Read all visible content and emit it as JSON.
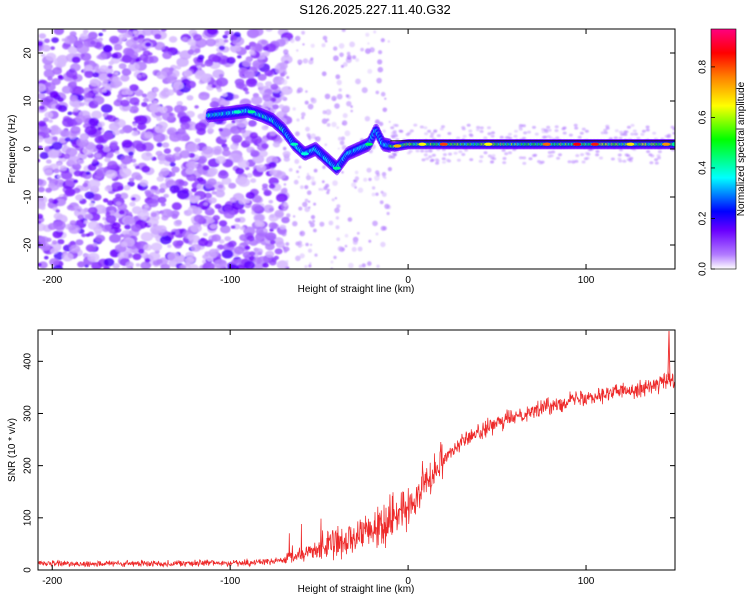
{
  "title": "S126.2025.227.11.40.G32",
  "chart_data": [
    {
      "type": "heatmap",
      "xlabel": "Height of straight line (km)",
      "ylabel": "Frequency (Hz)",
      "xlim": [
        -208,
        150
      ],
      "ylim": [
        -25,
        25
      ],
      "xticks": [
        -200,
        -100,
        0,
        100
      ],
      "yticks": [
        -20,
        -10,
        0,
        10,
        20
      ],
      "colorbar": {
        "label": "Normalized spectral amplitude",
        "range": [
          0.0,
          0.95
        ],
        "ticks": [
          0.0,
          0.2,
          0.4,
          0.6,
          0.8
        ],
        "colors": [
          "#ffffff",
          "#b27bff",
          "#6a00ff",
          "#0000ff",
          "#00ffff",
          "#00ff00",
          "#ffff00",
          "#ff8000",
          "#ff0000",
          "#ff0080"
        ]
      },
      "ridge": {
        "x": [
          -112,
          -100,
          -90,
          -82,
          -76,
          -70,
          -64,
          -58,
          -52,
          -46,
          -40,
          -34,
          -28,
          -22,
          -18,
          -14,
          -8,
          0,
          20,
          50,
          80,
          110,
          140,
          150
        ],
        "y": [
          7,
          7.5,
          8,
          7,
          6,
          4,
          1,
          -1,
          0,
          -2,
          -4,
          -1,
          0,
          1,
          4,
          1,
          0.5,
          1,
          1,
          1,
          1,
          1,
          1,
          1
        ]
      },
      "reference_line": {
        "y": 1.7,
        "x_start": -10,
        "x_end": 150
      }
    },
    {
      "type": "line",
      "xlabel": "Height of straight line (km)",
      "ylabel": "SNR (10 * v/v)",
      "xlim": [
        -208,
        150
      ],
      "ylim": [
        0,
        460
      ],
      "xticks": [
        -200,
        -100,
        0,
        100
      ],
      "yticks": [
        0,
        100,
        200,
        300,
        400
      ],
      "series": [
        {
          "color": "#ee2a2a",
          "x": [
            -208,
            -180,
            -150,
            -120,
            -90,
            -70,
            -60,
            -50,
            -40,
            -30,
            -20,
            -10,
            0,
            10,
            20,
            30,
            40,
            50,
            60,
            70,
            80,
            90,
            100,
            110,
            120,
            130,
            140,
            145,
            150
          ],
          "y": [
            12,
            12,
            12,
            13,
            14,
            18,
            30,
            40,
            50,
            60,
            75,
            95,
            120,
            170,
            215,
            245,
            265,
            280,
            295,
            305,
            315,
            325,
            332,
            338,
            343,
            348,
            355,
            362,
            360
          ]
        }
      ]
    }
  ]
}
